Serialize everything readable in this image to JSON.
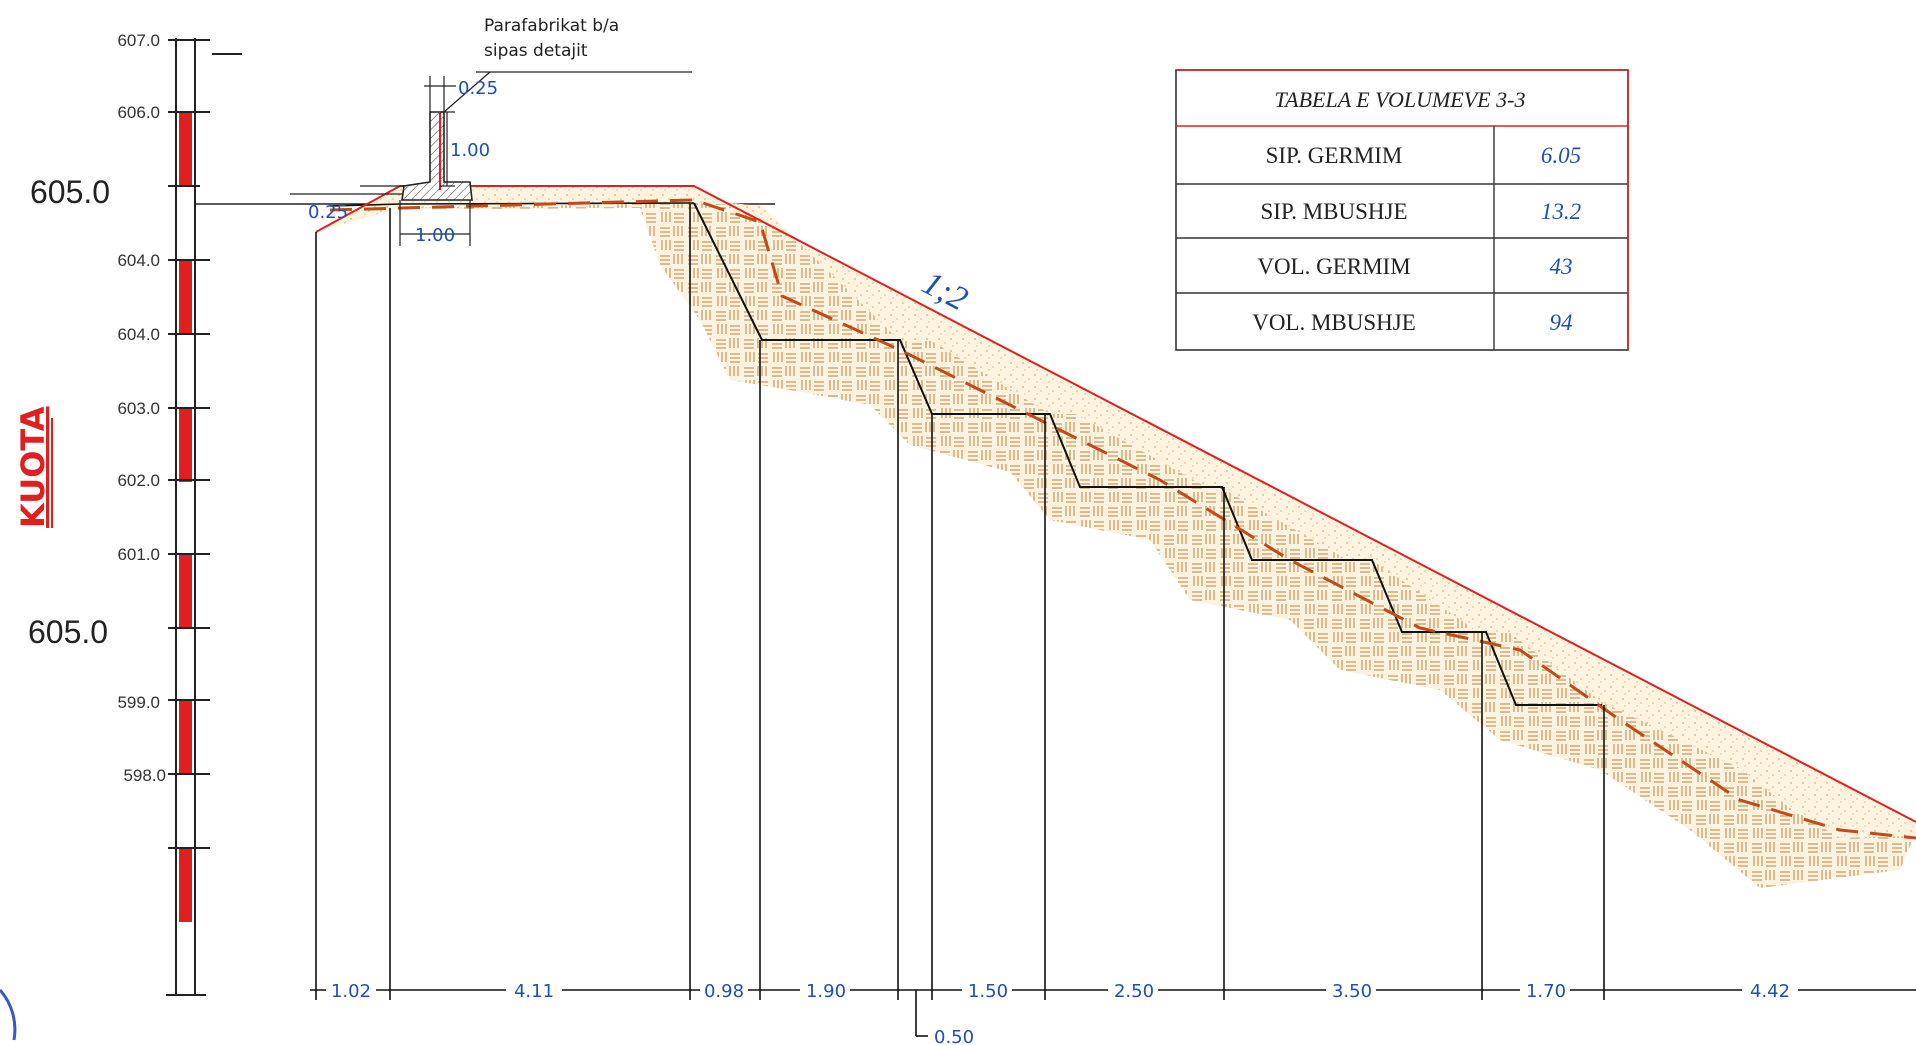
{
  "staff": {
    "axis_label": "KUOTA",
    "elevations": [
      "607.0",
      "606.0",
      "604.0",
      "604.0",
      "603.0",
      "602.0",
      "601.0",
      "599.0",
      "598.0"
    ],
    "big_elevations": [
      "605.0",
      "605.0"
    ]
  },
  "note": {
    "line1": "Parafabrikat b/a",
    "line2": "sipas detajit"
  },
  "curb": {
    "top_width": "0.25",
    "height": "1.00",
    "base_width": "1.00",
    "side": "0.25"
  },
  "slope_label": "1;2",
  "dimensions": [
    "1.02",
    "4.11",
    "0.98",
    "1.90",
    "1.50",
    "2.50",
    "3.50",
    "1.70",
    "4.42"
  ],
  "dimension_below": "0.50",
  "table": {
    "title": "TABELA E VOLUMEVE 3-3",
    "rows": [
      {
        "label": "SIP. GERMIM",
        "value": "6.05"
      },
      {
        "label": "SIP. MBUSHJE",
        "value": "13.2"
      },
      {
        "label": "VOL. GERMIM",
        "value": "43"
      },
      {
        "label": "VOL. MBUSHJE",
        "value": "94"
      }
    ]
  },
  "colors": {
    "red": "#e02020",
    "blue": "#1f4fb4",
    "fill_sand": "#f6e6c6",
    "hatch": "#d8b27a",
    "dashed": "#c24a1a"
  }
}
